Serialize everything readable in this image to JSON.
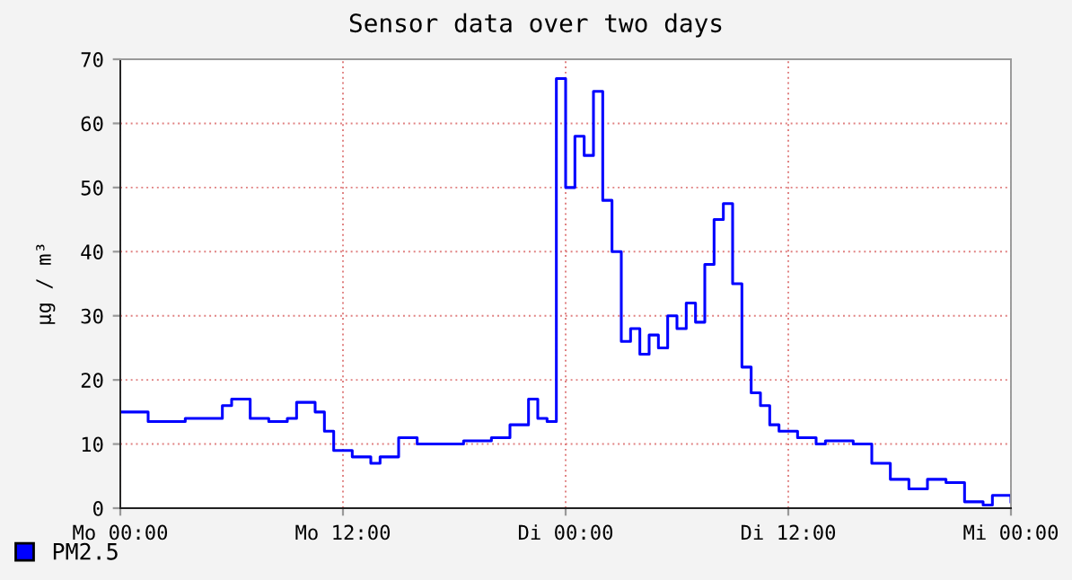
{
  "chart_data": {
    "type": "step",
    "title": "Sensor data over two days",
    "ylabel": "µg / m³",
    "categories": [
      "Mo 00:00",
      null,
      null,
      null,
      null,
      null,
      null,
      null,
      null,
      null,
      null,
      null,
      null,
      null,
      null,
      null,
      null,
      null,
      null,
      null,
      null,
      null,
      null,
      null,
      "Mo 12:00",
      null,
      null,
      null,
      null,
      null,
      null,
      null,
      null,
      null,
      null,
      null,
      null,
      null,
      null,
      null,
      null,
      null,
      null,
      null,
      null,
      null,
      null,
      null,
      "Di 00:00",
      null,
      null,
      null,
      null,
      null,
      null,
      null,
      null,
      null,
      null,
      null,
      null,
      null,
      null,
      null,
      null,
      null,
      null,
      null,
      null,
      null,
      null,
      null,
      "Di 12:00",
      null,
      null,
      null,
      null,
      null,
      null,
      null,
      null,
      null,
      null,
      null,
      null,
      null,
      null,
      null,
      null,
      null,
      null,
      null,
      null,
      null,
      null,
      null,
      "Mi 00:00"
    ],
    "series": [
      {
        "name": "PM2.5",
        "color": "#0000ff",
        "values": [
          15,
          15,
          15,
          13.5,
          13.5,
          13.5,
          13.5,
          14,
          14,
          14,
          14,
          16,
          17,
          17,
          14,
          14,
          13.5,
          13.5,
          14,
          16.5,
          16.5,
          15,
          12,
          9,
          9,
          8,
          8,
          7,
          8,
          8,
          11,
          11,
          10,
          10,
          10,
          10,
          10,
          10.5,
          10.5,
          10.5,
          11,
          11,
          13,
          13,
          17,
          14,
          13.5,
          67,
          50,
          58,
          55,
          65,
          48,
          40,
          26,
          28,
          24,
          27,
          25,
          30,
          28,
          32,
          29,
          38,
          45,
          47.5,
          35,
          22,
          18,
          16,
          13,
          12,
          12,
          11,
          11,
          10,
          10.5,
          10.5,
          10.5,
          10,
          10,
          7,
          7,
          4.5,
          4.5,
          3,
          3,
          4.5,
          4.5,
          4,
          4,
          1,
          1,
          0.5,
          2,
          2,
          1
        ]
      }
    ],
    "ylim": [
      0,
      70
    ],
    "yticks": [
      0,
      10,
      20,
      30,
      40,
      50,
      60,
      70
    ],
    "grid": true,
    "legend": "bottom left"
  }
}
